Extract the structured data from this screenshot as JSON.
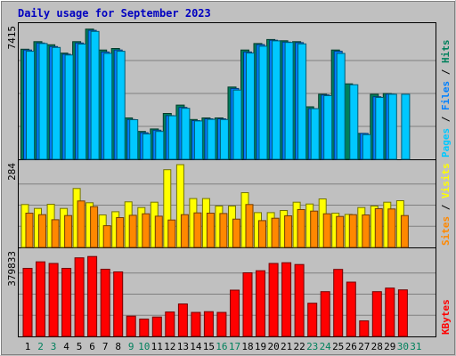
{
  "chart_data": {
    "title": "Daily usage for September 2023",
    "x_categories": [
      "1",
      "2",
      "3",
      "4",
      "5",
      "6",
      "7",
      "8",
      "9",
      "10",
      "11",
      "12",
      "13",
      "14",
      "15",
      "16",
      "17",
      "18",
      "19",
      "20",
      "21",
      "22",
      "23",
      "24",
      "25",
      "26",
      "27",
      "28",
      "29",
      "30",
      "31"
    ],
    "weekend_days": [
      "2",
      "3",
      "9",
      "10",
      "16",
      "17",
      "23",
      "24",
      "30",
      "31"
    ],
    "panels": [
      {
        "type": "bar",
        "max_label": "7415",
        "ymax": 7415,
        "legend": [
          "Pages",
          "Files",
          "Hits"
        ],
        "legend_colors": [
          "#00c8ff",
          "#0080ff",
          "#00805c"
        ],
        "series": [
          {
            "name": "Hits",
            "color": "#00805c",
            "values": [
              6200,
              6625,
              6450,
              5975,
              6625,
              7330,
              6150,
              6240,
              2330,
              1570,
              1710,
              2580,
              3050,
              2240,
              2330,
              2330,
              4070,
              6150,
              6520,
              6745,
              6675,
              6625,
              2955,
              3660,
              6150,
              4250,
              1460,
              3660,
              3700,
              null,
              null
            ]
          },
          {
            "name": "Files",
            "color": "#0080ff",
            "values": [
              6150,
              6550,
              6350,
              5915,
              6550,
              7260,
              6040,
              6150,
              2240,
              1500,
              1640,
              2460,
              2920,
              2180,
              2280,
              2280,
              3990,
              6040,
              6460,
              6705,
              6600,
              6570,
              2850,
              3620,
              6080,
              null,
              1460,
              3520,
              3670,
              null,
              null
            ]
          },
          {
            "name": "Pages",
            "color": "#00c8ff",
            "values": [
              6080,
              6520,
              6300,
              5870,
              6490,
              7200,
              5960,
              6080,
              2230,
              1430,
              1570,
              2450,
              2870,
              2160,
              2250,
              2240,
              3900,
              5980,
              6370,
              6670,
              6580,
              6500,
              2850,
              3580,
              5960,
              4200,
              1390,
              3480,
              3660,
              3660,
              null
            ]
          }
        ]
      },
      {
        "type": "bar",
        "max_label": "284",
        "ymax": 284,
        "legend": [
          "Sites",
          "Visits"
        ],
        "legend_colors": [
          "#ff8800",
          "#ffff00"
        ],
        "series": [
          {
            "name": "Visits",
            "color": "#ffff00",
            "values": [
              144,
              131,
              145,
              131,
              198,
              150,
              109,
              120,
              153,
              134,
              152,
              261,
              278,
              164,
              164,
              139,
              139,
              184,
              117,
              117,
              124,
              152,
              146,
              163,
              115,
              111,
              134,
              139,
              152,
              157,
              null
            ]
          },
          {
            "name": "Sites",
            "color": "#ff8800",
            "values": [
              115,
              110,
              93,
              107,
              156,
              137,
              73,
              100,
              108,
              113,
              105,
              92,
              110,
              116,
              115,
              114,
              95,
              144,
              90,
              98,
              106,
              127,
              122,
              113,
              104,
              110,
              109,
              130,
              129,
              107,
              null
            ]
          }
        ]
      },
      {
        "type": "bar",
        "max_label": "379833",
        "ymax": 379833,
        "legend": [
          "KBytes"
        ],
        "legend_colors": [
          "#ff0000"
        ],
        "series": [
          {
            "name": "KBytes",
            "color": "#ff0000",
            "values": [
              306000,
              335000,
              328000,
              306000,
              353000,
              359000,
              302000,
              290000,
              91000,
              78000,
              87000,
              110000,
              146000,
              108000,
              111000,
              108000,
              208000,
              286000,
              295000,
              328000,
              331000,
              323000,
              149000,
              201000,
              301000,
              244000,
              70000,
              201000,
              217000,
              209000,
              null
            ]
          }
        ]
      }
    ]
  }
}
